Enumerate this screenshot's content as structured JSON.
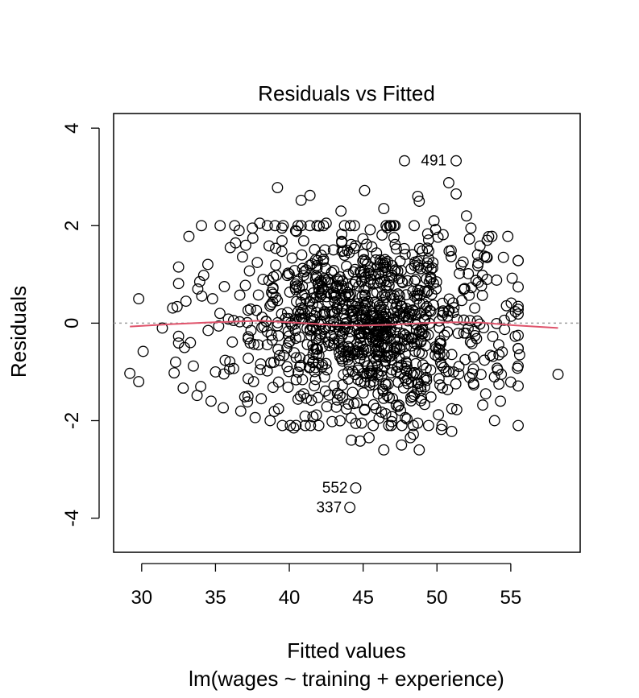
{
  "chart_data": {
    "type": "scatter",
    "title": "Residuals vs Fitted",
    "xlabel": "Fitted values",
    "subtitle": "lm(wages ~ training + experience)",
    "ylabel": "Residuals",
    "xlim": [
      28.1,
      59.7
    ],
    "ylim": [
      -4.7,
      4.3
    ],
    "xticks": [
      30,
      35,
      40,
      45,
      50,
      55
    ],
    "yticks": [
      4,
      2,
      0,
      -2,
      -4
    ],
    "grid": false,
    "point_color": "#000000",
    "smooth_color": "#DF536B",
    "reference_line_color": "#9E9E9E",
    "labeled_points": [
      {
        "label": "491",
        "x": 51.3,
        "y": 3.33
      },
      {
        "label": "552",
        "x": 44.5,
        "y": -3.38
      },
      {
        "label": "337",
        "x": 44.1,
        "y": -3.78
      }
    ],
    "outlying_points": [
      {
        "x": 29.2,
        "y": -1.03
      },
      {
        "x": 29.8,
        "y": 0.5
      },
      {
        "x": 29.8,
        "y": -1.2
      },
      {
        "x": 30.1,
        "y": -0.58
      },
      {
        "x": 31.4,
        "y": -0.1
      },
      {
        "x": 32.1,
        "y": 0.31
      },
      {
        "x": 32.3,
        "y": -0.8
      },
      {
        "x": 32.2,
        "y": -1.02
      },
      {
        "x": 32.4,
        "y": 0.34
      },
      {
        "x": 32.5,
        "y": -0.27
      },
      {
        "x": 32.9,
        "y": -0.5
      },
      {
        "x": 33.0,
        "y": 0.45
      },
      {
        "x": 33.2,
        "y": 1.78
      },
      {
        "x": 33.3,
        "y": -0.4
      },
      {
        "x": 33.5,
        "y": -0.88
      },
      {
        "x": 33.8,
        "y": 0.7
      },
      {
        "x": 34.0,
        "y": -1.3
      },
      {
        "x": 34.2,
        "y": 0.98
      },
      {
        "x": 34.5,
        "y": -0.15
      },
      {
        "x": 34.7,
        "y": -1.6
      },
      {
        "x": 34.8,
        "y": 0.5
      },
      {
        "x": 35.0,
        "y": -1.0
      },
      {
        "x": 35.3,
        "y": 0.2
      },
      {
        "x": 35.6,
        "y": 0.75
      },
      {
        "x": 36.0,
        "y": 1.55
      },
      {
        "x": 36.3,
        "y": 2.0
      },
      {
        "x": 36.6,
        "y": 1.9
      },
      {
        "x": 37.5,
        "y": 1.95
      },
      {
        "x": 38.0,
        "y": 2.05
      },
      {
        "x": 39.2,
        "y": 2.78
      },
      {
        "x": 39.5,
        "y": 1.95
      },
      {
        "x": 40.8,
        "y": 2.52
      },
      {
        "x": 41.4,
        "y": 2.62
      },
      {
        "x": 42.5,
        "y": 2.05
      },
      {
        "x": 43.5,
        "y": 2.3
      },
      {
        "x": 45.1,
        "y": 2.72
      },
      {
        "x": 46.4,
        "y": 2.35
      },
      {
        "x": 47.8,
        "y": 3.33
      },
      {
        "x": 48.7,
        "y": 2.6
      },
      {
        "x": 48.8,
        "y": 2.5
      },
      {
        "x": 49.8,
        "y": 2.1
      },
      {
        "x": 50.8,
        "y": 2.88
      },
      {
        "x": 51.3,
        "y": 2.65
      },
      {
        "x": 52.0,
        "y": 2.2
      },
      {
        "x": 52.3,
        "y": 1.95
      },
      {
        "x": 53.4,
        "y": 1.7
      },
      {
        "x": 54.5,
        "y": 1.35
      },
      {
        "x": 54.8,
        "y": 1.78
      },
      {
        "x": 55.3,
        "y": -0.27
      },
      {
        "x": 55.6,
        "y": -0.65
      },
      {
        "x": 55.5,
        "y": -0.88
      },
      {
        "x": 54.2,
        "y": -0.65
      },
      {
        "x": 54.2,
        "y": -1.25
      },
      {
        "x": 54.3,
        "y": -1.6
      },
      {
        "x": 53.9,
        "y": -2.0
      },
      {
        "x": 53.3,
        "y": -1.45
      },
      {
        "x": 53.1,
        "y": -1.68
      },
      {
        "x": 58.2,
        "y": -1.05
      },
      {
        "x": 51.0,
        "y": -2.22
      },
      {
        "x": 50.3,
        "y": -2.18
      },
      {
        "x": 50.1,
        "y": -1.88
      },
      {
        "x": 48.8,
        "y": -2.6
      },
      {
        "x": 48.7,
        "y": -2.05
      },
      {
        "x": 48.4,
        "y": -2.28
      },
      {
        "x": 48.2,
        "y": -2.35
      },
      {
        "x": 47.6,
        "y": -2.5
      },
      {
        "x": 46.9,
        "y": -2.1
      },
      {
        "x": 46.4,
        "y": -2.6
      },
      {
        "x": 45.4,
        "y": -2.35
      },
      {
        "x": 44.8,
        "y": -2.42
      },
      {
        "x": 44.9,
        "y": -2.05
      },
      {
        "x": 44.2,
        "y": -2.4
      },
      {
        "x": 42.9,
        "y": -2.02
      },
      {
        "x": 41.6,
        "y": -1.92
      },
      {
        "x": 40.3,
        "y": -2.15
      },
      {
        "x": 38.7,
        "y": -2.0
      },
      {
        "x": 37.2,
        "y": -1.5
      },
      {
        "x": 38.1,
        "y": -1.55
      }
    ],
    "dense_cloud": {
      "n_points": 1000,
      "x_mean": 45.4,
      "x_sd": 4.3,
      "y_mean": 0.0,
      "y_sd": 0.95
    },
    "smooth_curve": [
      {
        "x": 29.2,
        "y": -0.07
      },
      {
        "x": 32.0,
        "y": -0.02
      },
      {
        "x": 35.0,
        "y": 0.02
      },
      {
        "x": 38.0,
        "y": 0.05
      },
      {
        "x": 41.0,
        "y": 0.0
      },
      {
        "x": 43.0,
        "y": -0.04
      },
      {
        "x": 45.0,
        "y": -0.05
      },
      {
        "x": 47.0,
        "y": -0.03
      },
      {
        "x": 49.0,
        "y": 0.0
      },
      {
        "x": 51.0,
        "y": 0.02
      },
      {
        "x": 53.0,
        "y": 0.01
      },
      {
        "x": 55.0,
        "y": -0.04
      },
      {
        "x": 58.2,
        "y": -0.1
      }
    ]
  }
}
